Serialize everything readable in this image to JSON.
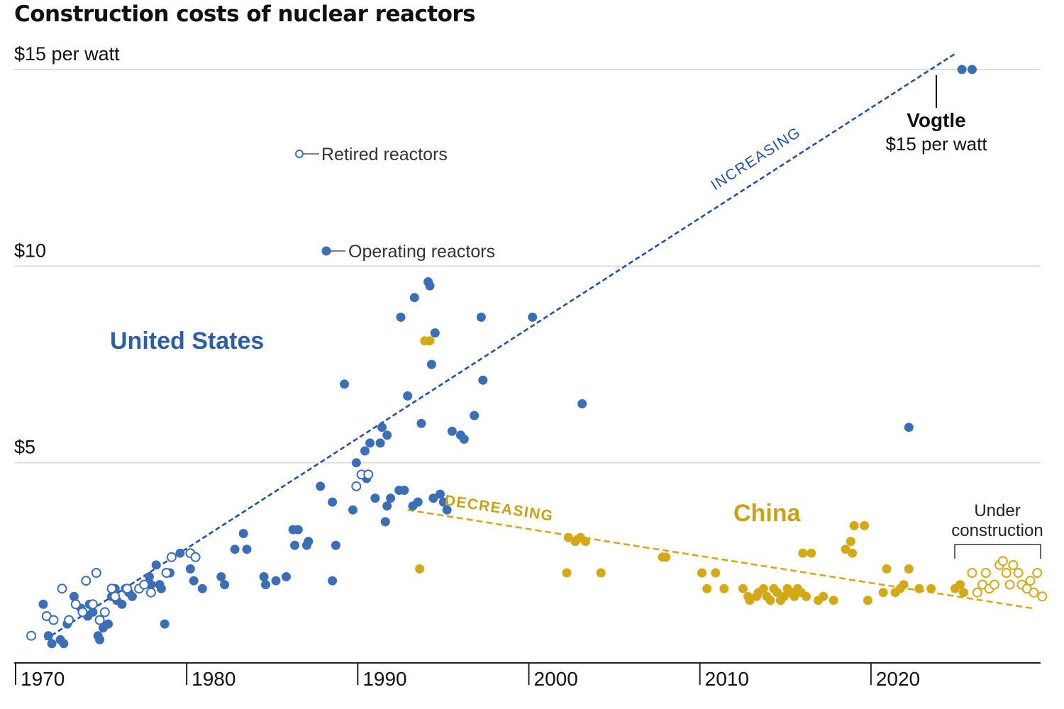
{
  "chart_data": {
    "type": "scatter",
    "title": "Construction costs of nuclear reactors",
    "y_unit_suffix": " per watt",
    "yticks": [
      {
        "value": 15,
        "label": "$15 per watt"
      },
      {
        "value": 10,
        "label": "$10"
      },
      {
        "value": 5,
        "label": "$5"
      }
    ],
    "xticks": [
      {
        "value": 1970,
        "label": "1970"
      },
      {
        "value": 1980,
        "label": "1980"
      },
      {
        "value": 1990,
        "label": "1990"
      },
      {
        "value": 2000,
        "label": "2000"
      },
      {
        "value": 2010,
        "label": "2010"
      },
      {
        "value": 2020,
        "label": "2020"
      }
    ],
    "xlim": [
      1970,
      2030
    ],
    "ylim": [
      0,
      15
    ],
    "grid": "horizontal",
    "colors": {
      "us": "#3a6fb8",
      "us_trend": "#2452a0",
      "china": "#d4a917",
      "gridline": "#dddddd",
      "axis": "#222222"
    },
    "legend": {
      "retired": "Retired reactors",
      "operating": "Operating reactors"
    },
    "annotations": {
      "united_states": "United States",
      "china": "China",
      "increasing": "INCREASING",
      "decreasing": "DECREASING",
      "vogtle_name": "Vogtle",
      "vogtle_cost": "$15 per watt",
      "under_construction_1": "Under",
      "under_construction_2": "construction"
    },
    "trend_lines": {
      "us_increasing": {
        "x": [
          1971.8,
          2025.0
        ],
        "y": [
          0.5,
          15.4
        ]
      },
      "china_decreasing": {
        "x": [
          1993.0,
          2029.5
        ],
        "y": [
          3.8,
          1.3
        ]
      }
    },
    "series": [
      {
        "name": "United States",
        "status": "operating",
        "points": [
          [
            1971.7,
            1.4
          ],
          [
            1972.0,
            0.6
          ],
          [
            1972.2,
            0.4
          ],
          [
            1972.7,
            0.5
          ],
          [
            1972.9,
            0.4
          ],
          [
            1973.1,
            0.9
          ],
          [
            1973.5,
            1.6
          ],
          [
            1973.9,
            1.3
          ],
          [
            1974.3,
            1.1
          ],
          [
            1974.4,
            1.4
          ],
          [
            1974.6,
            1.2
          ],
          [
            1974.9,
            0.6
          ],
          [
            1975.0,
            0.5
          ],
          [
            1975.2,
            0.8
          ],
          [
            1975.5,
            0.9
          ],
          [
            1975.7,
            1.6
          ],
          [
            1975.9,
            1.8
          ],
          [
            1976.0,
            1.5
          ],
          [
            1976.3,
            1.4
          ],
          [
            1976.5,
            1.8
          ],
          [
            1976.7,
            1.7
          ],
          [
            1976.9,
            1.6
          ],
          [
            1977.9,
            2.1
          ],
          [
            1978.0,
            1.9
          ],
          [
            1978.3,
            2.4
          ],
          [
            1978.5,
            1.9
          ],
          [
            1978.6,
            1.8
          ],
          [
            1978.8,
            0.9
          ],
          [
            1979.1,
            2.2
          ],
          [
            1979.7,
            2.7
          ],
          [
            1980.5,
            2.0
          ],
          [
            1980.3,
            2.3
          ],
          [
            1980.6,
            2.6
          ],
          [
            1981.0,
            1.8
          ],
          [
            1982.1,
            2.1
          ],
          [
            1982.3,
            1.9
          ],
          [
            1982.9,
            2.8
          ],
          [
            1983.4,
            3.2
          ],
          [
            1983.6,
            2.8
          ],
          [
            1984.6,
            2.1
          ],
          [
            1984.7,
            1.9
          ],
          [
            1985.3,
            2.0
          ],
          [
            1985.9,
            2.1
          ],
          [
            1986.3,
            3.3
          ],
          [
            1986.6,
            3.3
          ],
          [
            1986.4,
            2.9
          ],
          [
            1987.1,
            2.9
          ],
          [
            1987.2,
            3.0
          ],
          [
            1987.9,
            4.4
          ],
          [
            1988.6,
            2.0
          ],
          [
            1988.6,
            4.0
          ],
          [
            1988.8,
            2.9
          ],
          [
            1989.3,
            7.0
          ],
          [
            1989.8,
            3.8
          ],
          [
            1990.0,
            5.0
          ],
          [
            1990.5,
            5.3
          ],
          [
            1990.6,
            4.6
          ],
          [
            1990.8,
            5.5
          ],
          [
            1991.1,
            4.1
          ],
          [
            1991.4,
            5.5
          ],
          [
            1991.5,
            5.9
          ],
          [
            1991.7,
            3.5
          ],
          [
            1991.8,
            5.7
          ],
          [
            1991.8,
            3.9
          ],
          [
            1992.0,
            4.1
          ],
          [
            1992.5,
            4.3
          ],
          [
            1992.6,
            8.7
          ],
          [
            1992.8,
            4.3
          ],
          [
            1993.0,
            6.7
          ],
          [
            1993.3,
            3.9
          ],
          [
            1993.4,
            9.2
          ],
          [
            1993.6,
            4.0
          ],
          [
            1993.8,
            6.0
          ],
          [
            1994.2,
            9.6
          ],
          [
            1994.3,
            9.5
          ],
          [
            1994.4,
            7.5
          ],
          [
            1994.5,
            4.1
          ],
          [
            1994.6,
            8.3
          ],
          [
            1994.9,
            4.2
          ],
          [
            1995.1,
            4.0
          ],
          [
            1995.3,
            3.8
          ],
          [
            1995.6,
            5.8
          ],
          [
            1996.1,
            5.7
          ],
          [
            1996.3,
            5.6
          ],
          [
            1996.9,
            6.2
          ],
          [
            1997.3,
            8.7
          ],
          [
            1997.4,
            7.1
          ],
          [
            2000.3,
            8.7
          ],
          [
            2003.2,
            6.5
          ],
          [
            2022.3,
            5.9
          ],
          [
            2025.4,
            15.0
          ],
          [
            2026.0,
            15.0
          ]
        ]
      },
      {
        "name": "United States",
        "status": "retired",
        "points": [
          [
            1971.0,
            0.6
          ],
          [
            1971.9,
            1.1
          ],
          [
            1972.3,
            1.0
          ],
          [
            1972.8,
            1.8
          ],
          [
            1973.2,
            1.0
          ],
          [
            1973.6,
            1.4
          ],
          [
            1974.0,
            1.2
          ],
          [
            1974.2,
            2.0
          ],
          [
            1974.6,
            1.4
          ],
          [
            1974.8,
            2.2
          ],
          [
            1975.0,
            1.0
          ],
          [
            1975.3,
            1.2
          ],
          [
            1975.7,
            1.8
          ],
          [
            1975.9,
            1.6
          ],
          [
            1976.6,
            1.8
          ],
          [
            1977.3,
            1.8
          ],
          [
            1977.6,
            1.9
          ],
          [
            1978.0,
            1.7
          ],
          [
            1978.9,
            2.2
          ],
          [
            1979.2,
            2.6
          ],
          [
            1980.3,
            2.7
          ],
          [
            1980.6,
            2.6
          ],
          [
            1990.0,
            4.4
          ],
          [
            1990.3,
            4.7
          ],
          [
            1990.7,
            4.7
          ]
        ]
      },
      {
        "name": "China",
        "status": "operating",
        "points": [
          [
            1993.7,
            2.3
          ],
          [
            1994.0,
            8.1
          ],
          [
            1994.3,
            8.1
          ],
          [
            2002.3,
            2.2
          ],
          [
            2002.4,
            3.1
          ],
          [
            2002.8,
            3.0
          ],
          [
            2003.1,
            3.1
          ],
          [
            2003.4,
            3.0
          ],
          [
            2004.3,
            2.2
          ],
          [
            2007.9,
            2.6
          ],
          [
            2008.1,
            2.6
          ],
          [
            2010.2,
            2.2
          ],
          [
            2010.5,
            1.8
          ],
          [
            2011.0,
            2.2
          ],
          [
            2011.5,
            1.8
          ],
          [
            2012.6,
            1.8
          ],
          [
            2012.9,
            1.6
          ],
          [
            2013.0,
            1.5
          ],
          [
            2013.4,
            1.6
          ],
          [
            2013.5,
            1.7
          ],
          [
            2013.8,
            1.8
          ],
          [
            2014.0,
            1.6
          ],
          [
            2014.2,
            1.5
          ],
          [
            2014.4,
            1.8
          ],
          [
            2014.6,
            1.7
          ],
          [
            2014.8,
            1.5
          ],
          [
            2015.0,
            1.6
          ],
          [
            2015.2,
            1.8
          ],
          [
            2015.4,
            1.7
          ],
          [
            2015.6,
            1.6
          ],
          [
            2015.8,
            1.8
          ],
          [
            2016.0,
            1.7
          ],
          [
            2016.1,
            2.7
          ],
          [
            2016.3,
            1.6
          ],
          [
            2016.6,
            2.7
          ],
          [
            2017.0,
            1.5
          ],
          [
            2017.3,
            1.6
          ],
          [
            2017.9,
            1.5
          ],
          [
            2018.6,
            2.8
          ],
          [
            2018.9,
            3.0
          ],
          [
            2019.0,
            2.7
          ],
          [
            2019.1,
            3.4
          ],
          [
            2019.7,
            3.4
          ],
          [
            2019.9,
            1.5
          ],
          [
            2020.8,
            1.7
          ],
          [
            2021.0,
            2.3
          ],
          [
            2021.5,
            1.7
          ],
          [
            2021.8,
            1.8
          ],
          [
            2022.0,
            1.9
          ],
          [
            2022.3,
            2.3
          ],
          [
            2022.9,
            1.8
          ],
          [
            2023.6,
            1.8
          ],
          [
            2025.0,
            1.8
          ],
          [
            2025.3,
            1.9
          ],
          [
            2025.5,
            1.7
          ]
        ]
      },
      {
        "name": "China",
        "status": "under construction",
        "points": [
          [
            2026.0,
            2.2
          ],
          [
            2026.3,
            1.7
          ],
          [
            2026.6,
            1.9
          ],
          [
            2026.8,
            2.2
          ],
          [
            2027.0,
            1.8
          ],
          [
            2027.3,
            1.9
          ],
          [
            2027.6,
            2.4
          ],
          [
            2027.8,
            2.5
          ],
          [
            2028.0,
            2.2
          ],
          [
            2028.2,
            1.9
          ],
          [
            2028.4,
            2.4
          ],
          [
            2028.7,
            2.2
          ],
          [
            2028.9,
            1.9
          ],
          [
            2029.2,
            1.8
          ],
          [
            2029.4,
            2.0
          ],
          [
            2029.6,
            1.7
          ],
          [
            2029.8,
            2.2
          ],
          [
            2030.1,
            1.6
          ]
        ]
      }
    ]
  }
}
